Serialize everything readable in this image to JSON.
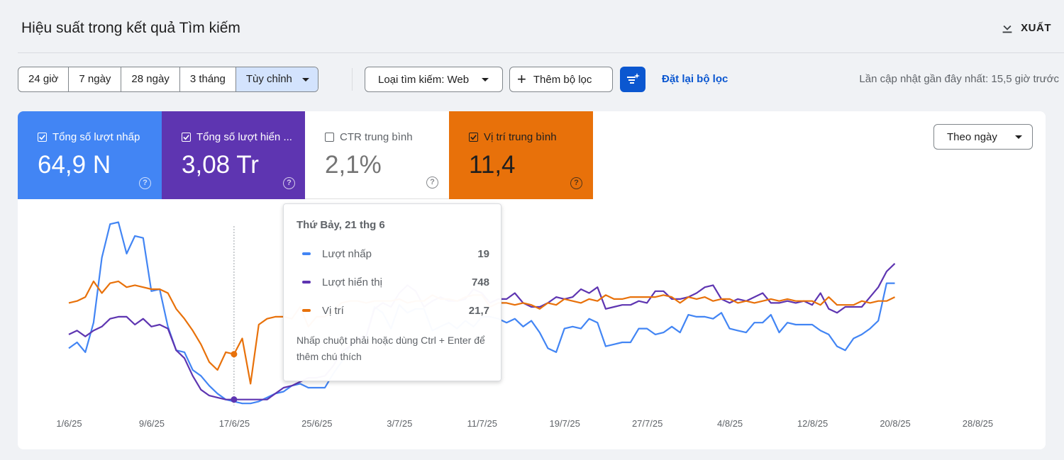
{
  "header": {
    "title": "Hiệu suất trong kết quả Tìm kiếm",
    "export_label": "XUẤT",
    "export_icon": "download-icon"
  },
  "toolbar": {
    "date_ranges": [
      "24 giờ",
      "7 ngày",
      "28 ngày",
      "3 tháng",
      "Tùy chỉnh"
    ],
    "active_range": "Tùy chỉnh",
    "search_type": "Loại tìm kiếm: Web",
    "add_filter": "Thêm bộ lọc",
    "reset_filters": "Đặt lại bộ lọc",
    "last_updated": "Lần cập nhật gần đây nhất: 15,5 giờ trước"
  },
  "metrics": [
    {
      "label": "Tổng số lượt nhấp",
      "value": "64,9 N",
      "checked": true,
      "color": "#4285f4"
    },
    {
      "label": "Tổng số lượt hiển thị",
      "label_display": "Tổng số lượt hiển ...",
      "value": "3,08 Tr",
      "checked": true,
      "color": "#5e35b1"
    },
    {
      "label": "CTR trung bình",
      "value": "2,1%",
      "checked": false,
      "color": "#ffffff"
    },
    {
      "label": "Vị trí trung bình",
      "value": "11,4",
      "checked": true,
      "color": "#e8710a"
    }
  ],
  "period_select": "Theo ngày",
  "tooltip": {
    "date": "Thứ Bảy, 21 thg 6",
    "rows": [
      {
        "label": "Lượt nhấp",
        "value": "19",
        "color": "#4285f4"
      },
      {
        "label": "Lượt hiển thị",
        "value": "748",
        "color": "#5e35b1"
      },
      {
        "label": "Vị trí",
        "value": "21,7",
        "color": "#e8710a"
      }
    ],
    "note": "Nhấp chuột phải hoặc dùng Ctrl + Enter để thêm chú thích"
  },
  "chart_data": {
    "type": "line",
    "x_tick_labels": [
      "1/6/25",
      "9/6/25",
      "17/6/25",
      "25/6/25",
      "3/7/25",
      "11/7/25",
      "19/7/25",
      "27/7/25",
      "4/8/25",
      "12/8/25",
      "20/8/25",
      "28/8/25"
    ],
    "highlight_date": "21/6/25",
    "note": "Each series uses its own independent y-scale (0 = bottom); values are normalized 0-100 readings of line height.",
    "series": [
      {
        "name": "Lượt nhấp",
        "color": "#4285f4",
        "values": [
          29,
          32,
          27,
          42,
          75,
          92,
          93,
          77,
          86,
          85,
          58,
          59,
          40,
          28,
          27,
          18,
          15,
          10,
          6,
          3,
          2,
          1,
          1,
          2,
          4,
          6,
          7,
          10,
          11,
          9,
          9,
          9,
          16,
          22,
          30,
          34,
          35,
          50,
          47,
          39,
          51,
          47,
          49,
          49,
          38,
          40,
          42,
          39,
          43,
          40,
          45,
          45,
          44,
          42,
          44,
          40,
          43,
          37,
          29,
          27,
          39,
          40,
          39,
          44,
          42,
          30,
          31,
          32,
          32,
          39,
          39,
          36,
          37,
          40,
          37,
          46,
          45,
          45,
          44,
          47,
          39,
          38,
          37,
          42,
          42,
          46,
          37,
          42,
          41,
          41,
          41,
          38,
          36,
          30,
          28,
          34,
          36,
          39,
          43,
          62,
          62
        ]
      },
      {
        "name": "Lượt hiển thị",
        "color": "#5e35b1",
        "values": [
          36,
          38,
          35,
          38,
          40,
          44,
          45,
          45,
          41,
          44,
          40,
          41,
          39,
          28,
          24,
          15,
          8,
          5,
          4,
          3,
          3,
          3,
          3,
          3,
          3,
          6,
          9,
          10,
          12,
          14,
          14,
          15,
          20,
          27,
          30,
          34,
          35,
          49,
          52,
          50,
          57,
          61,
          58,
          50,
          53,
          55,
          53,
          53,
          54,
          59,
          57,
          52,
          54,
          54,
          57,
          52,
          50,
          50,
          52,
          55,
          54,
          55,
          59,
          57,
          60,
          49,
          50,
          51,
          51,
          53,
          52,
          58,
          58,
          54,
          54,
          55,
          57,
          60,
          61,
          54,
          52,
          54,
          53,
          55,
          57,
          52,
          52,
          53,
          52,
          53,
          51,
          57,
          49,
          47,
          50,
          50,
          50,
          55,
          60,
          68,
          72
        ]
      },
      {
        "name": "Vị trí",
        "color": "#e8710a",
        "values": [
          52,
          53,
          55,
          63,
          57,
          62,
          63,
          60,
          61,
          60,
          59,
          59,
          57,
          49,
          44,
          38,
          31,
          22,
          18,
          27,
          26,
          34,
          11,
          41,
          44,
          45,
          45,
          44,
          50,
          40,
          45,
          45,
          48,
          52,
          53,
          53,
          52,
          53,
          53,
          53,
          54,
          52,
          53,
          53,
          56,
          54,
          54,
          53,
          55,
          56,
          56,
          50,
          52,
          52,
          51,
          52,
          51,
          49,
          52,
          51,
          54,
          53,
          52,
          54,
          53,
          56,
          54,
          54,
          55,
          55,
          55,
          55,
          56,
          55,
          52,
          55,
          54,
          55,
          53,
          54,
          54,
          52,
          53,
          52,
          53,
          54,
          53,
          54,
          53,
          53,
          53,
          51,
          55,
          51,
          51,
          51,
          53,
          52,
          53,
          53,
          55
        ]
      }
    ],
    "show_grid": false,
    "legend": "none"
  }
}
